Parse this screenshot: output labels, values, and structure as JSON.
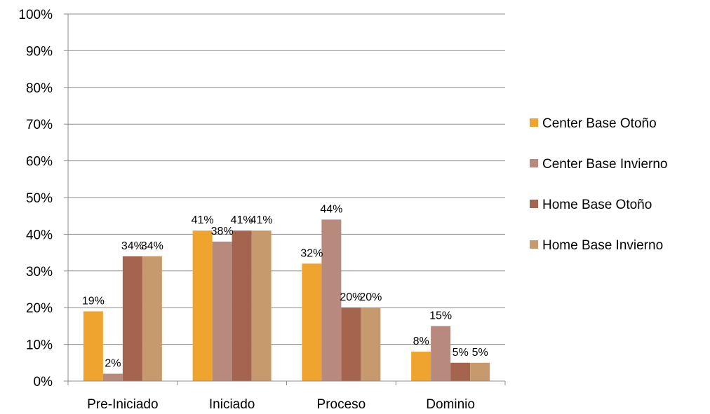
{
  "chart_data": {
    "type": "bar",
    "categories": [
      "Pre-Iniciado",
      "Iniciado",
      "Proceso",
      "Dominio"
    ],
    "series": [
      {
        "name": "Center Base Otoño",
        "values": [
          19,
          41,
          32,
          8
        ],
        "labels": [
          "19%",
          "41%",
          "32%",
          "8%"
        ],
        "color": "#F0A430"
      },
      {
        "name": "Center Base Invierno",
        "values": [
          2,
          38,
          44,
          15
        ],
        "labels": [
          "2%",
          "38%",
          "44%",
          "15%"
        ],
        "color": "#B88A7E"
      },
      {
        "name": "Home Base Otoño",
        "values": [
          34,
          41,
          20,
          5
        ],
        "labels": [
          "34%",
          "41%",
          "20%",
          "5%"
        ],
        "color": "#A5644E"
      },
      {
        "name": "Home Base Invierno",
        "values": [
          34,
          41,
          20,
          5
        ],
        "labels": [
          "34%",
          "41%",
          "20%",
          "5%"
        ],
        "color": "#C79A6D"
      }
    ],
    "ylim": [
      0,
      100
    ],
    "yticks": [
      "0%",
      "10%",
      "20%",
      "30%",
      "40%",
      "50%",
      "60%",
      "70%",
      "80%",
      "90%",
      "100%"
    ],
    "grid": true,
    "legend": "right"
  }
}
